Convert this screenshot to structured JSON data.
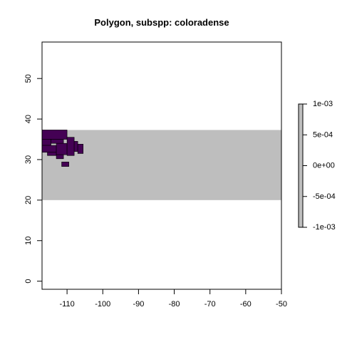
{
  "chart_data": {
    "type": "heatmap",
    "title": "Polygon, subspp: coloradense",
    "xlabel": "",
    "ylabel": "",
    "xlim": [
      -117,
      -50
    ],
    "ylim": [
      -2,
      59
    ],
    "x_ticks": [
      -110,
      -100,
      -90,
      -80,
      -70,
      -60,
      -50
    ],
    "x_tick_labels": [
      "-110",
      "-100",
      "-90",
      "-80",
      "-70",
      "-60",
      "-50"
    ],
    "y_ticks": [
      0,
      10,
      20,
      30,
      40,
      50
    ],
    "y_tick_labels": [
      "0",
      "10",
      "20",
      "30",
      "40",
      "50"
    ],
    "grid": false,
    "background_raster": {
      "x_range": [
        -117,
        -50
      ],
      "y_range": [
        20,
        37.3
      ],
      "color": "#bebebe"
    },
    "polygon_cells_color": "#440154",
    "polygon_cells": [
      {
        "x0": -117,
        "x1": -110,
        "y0": 35,
        "y1": 37.3
      },
      {
        "x0": -117,
        "x1": -114.5,
        "y0": 33.5,
        "y1": 35
      },
      {
        "x0": -114.5,
        "x1": -111,
        "y0": 34,
        "y1": 35
      },
      {
        "x0": -117,
        "x1": -113,
        "y0": 31.8,
        "y1": 33.5
      },
      {
        "x0": -115.5,
        "x1": -113,
        "y0": 31,
        "y1": 31.8
      },
      {
        "x0": -113,
        "x1": -110,
        "y0": 31.2,
        "y1": 34
      },
      {
        "x0": -110,
        "x1": -108,
        "y0": 31,
        "y1": 35.5
      },
      {
        "x0": -108,
        "x1": -107,
        "y0": 32,
        "y1": 34.5
      },
      {
        "x0": -107,
        "x1": -105.5,
        "y0": 31.5,
        "y1": 33.8
      },
      {
        "x0": -113,
        "x1": -111,
        "y0": 30.2,
        "y1": 31.2
      },
      {
        "x0": -111.5,
        "x1": -109.5,
        "y0": 28.3,
        "y1": 29.4
      }
    ],
    "legend": {
      "placement": "right",
      "range": [
        -0.001,
        0.001
      ],
      "ticks": [
        0.001,
        0.0005,
        0,
        -0.0005,
        -0.001
      ],
      "tick_labels": [
        "1e-03",
        "5e-04",
        "0e+00",
        "-5e-04",
        "-1e-03"
      ],
      "color": "#bebebe"
    }
  }
}
